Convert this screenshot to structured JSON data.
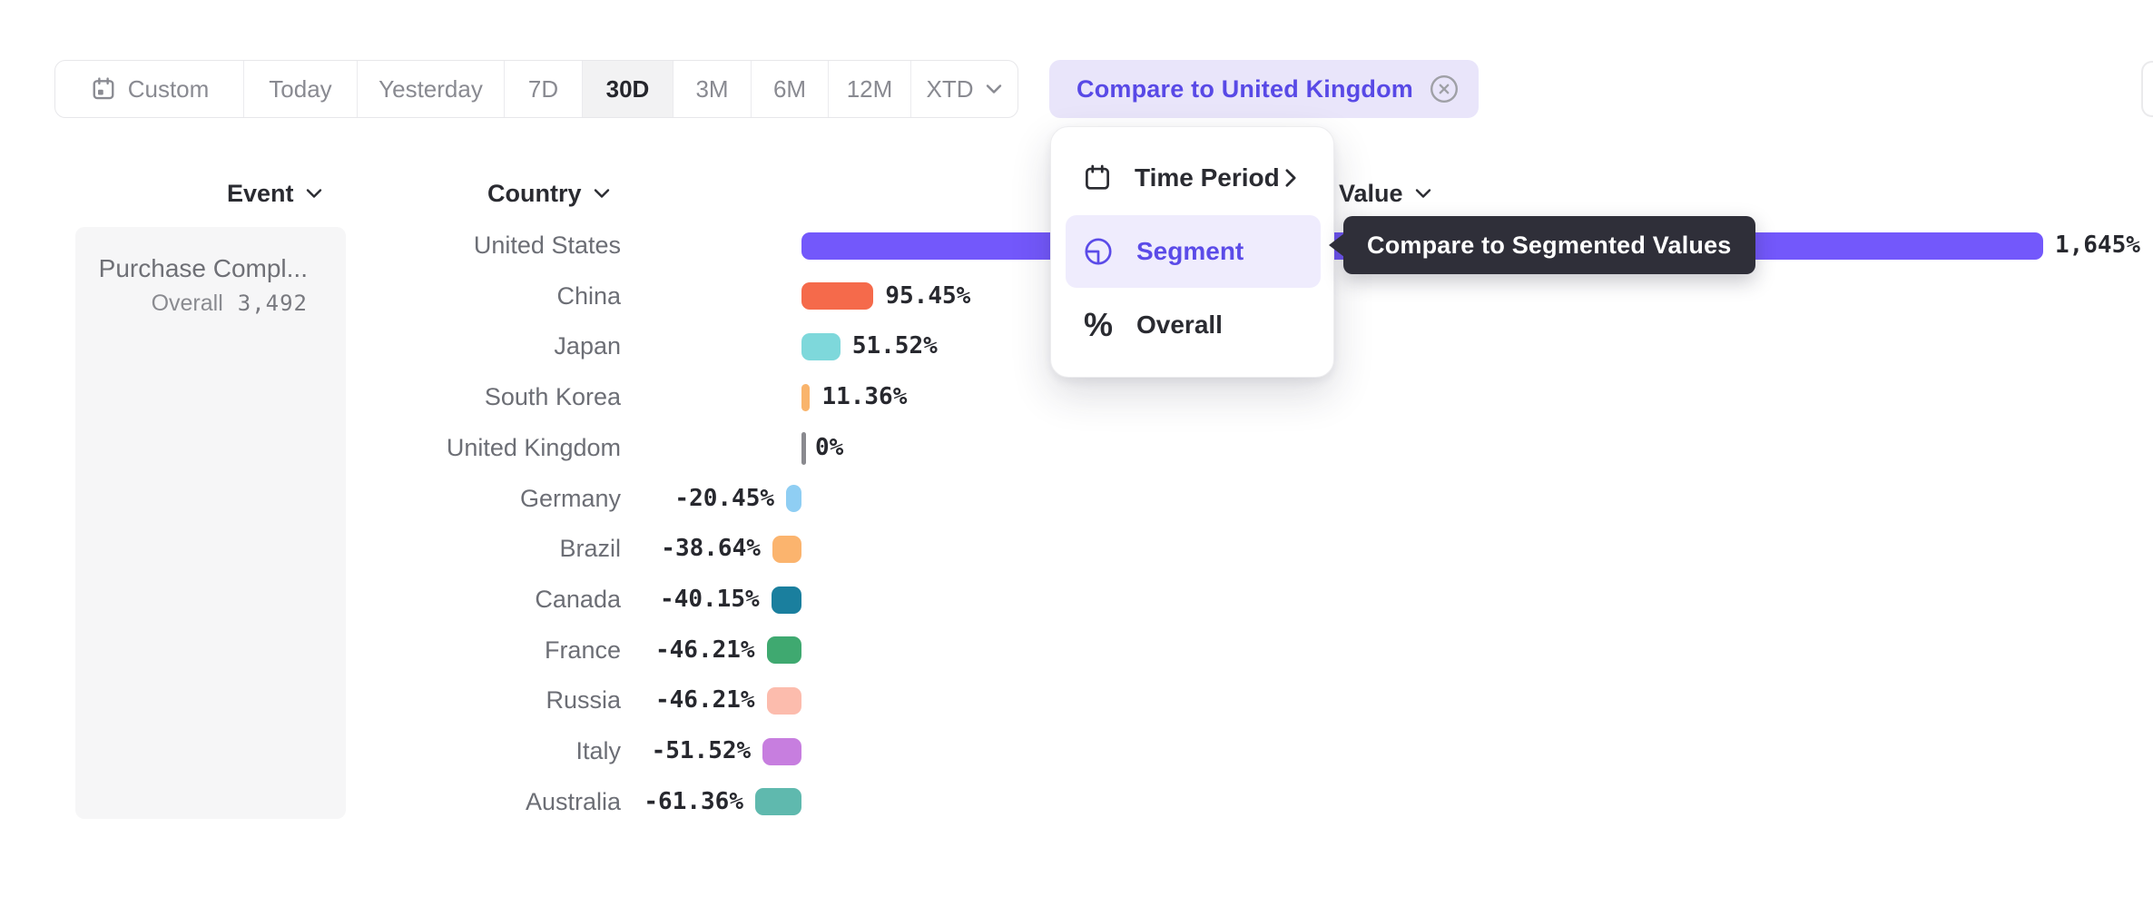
{
  "toolbar": {
    "ranges": [
      {
        "label": "Custom",
        "icon": "calendar",
        "selected": false
      },
      {
        "label": "Today",
        "selected": false
      },
      {
        "label": "Yesterday",
        "selected": false
      },
      {
        "label": "7D",
        "selected": false
      },
      {
        "label": "30D",
        "selected": true
      },
      {
        "label": "3M",
        "selected": false
      },
      {
        "label": "6M",
        "selected": false
      },
      {
        "label": "12M",
        "selected": false
      },
      {
        "label": "XTD",
        "chevron": true,
        "selected": false
      }
    ],
    "compare_chip": {
      "label": "Compare to United Kingdom",
      "close_icon": "circle-x"
    }
  },
  "columns": {
    "event": "Event",
    "country": "Country",
    "value": "Value"
  },
  "event_panel": {
    "event_name": "Purchase Compl...",
    "overall_label": "Overall",
    "overall_value": "3,492"
  },
  "context_menu": {
    "items": [
      {
        "label": "Time Period",
        "icon": "calendar",
        "has_submenu": true,
        "highlighted": false
      },
      {
        "label": "Segment",
        "icon": "segment",
        "highlighted": true
      },
      {
        "label": "Overall",
        "icon": "percent",
        "highlighted": false
      }
    ]
  },
  "tooltip": {
    "text": "Compare to Segmented Values"
  },
  "chart_data": {
    "type": "bar",
    "orientation": "horizontal",
    "unit": "percent",
    "title": "",
    "xlabel": "",
    "ylabel": "Country",
    "baseline_category": "United Kingdom",
    "comparison": "values relative to United Kingdom",
    "categories": [
      "United States",
      "China",
      "Japan",
      "South Korea",
      "United Kingdom",
      "Germany",
      "Brazil",
      "Canada",
      "France",
      "Russia",
      "Italy",
      "Australia"
    ],
    "values": [
      1645,
      95.45,
      51.52,
      11.36,
      0,
      -20.45,
      -38.64,
      -40.15,
      -46.21,
      -46.21,
      -51.52,
      -61.36
    ],
    "value_labels": [
      "1,645%",
      "95.45%",
      "51.52%",
      "11.36%",
      "0%",
      "-20.45%",
      "-38.64%",
      "-40.15%",
      "-46.21%",
      "-46.21%",
      "-51.52%",
      "-61.36%"
    ],
    "colors": [
      "#7358FB",
      "#F56A4B",
      "#7ED8DB",
      "#F9B46C",
      "#8A8A8F",
      "#8FCEF3",
      "#FBB46E",
      "#1A7F9E",
      "#3FA970",
      "#FCBCAD",
      "#C77EDF",
      "#5FB9AE"
    ],
    "dotted": [
      false,
      false,
      false,
      false,
      false,
      true,
      true,
      false,
      false,
      false,
      false,
      false
    ]
  },
  "accent_colors": {
    "primary_purple": "#5B4BE8",
    "chip_bg": "#E9E5FA",
    "menu_highlight_bg": "#EFECFD",
    "tooltip_bg": "#2F2F39",
    "selected_range_bg": "#F2F2F3",
    "panel_bg": "#F6F6F7"
  }
}
